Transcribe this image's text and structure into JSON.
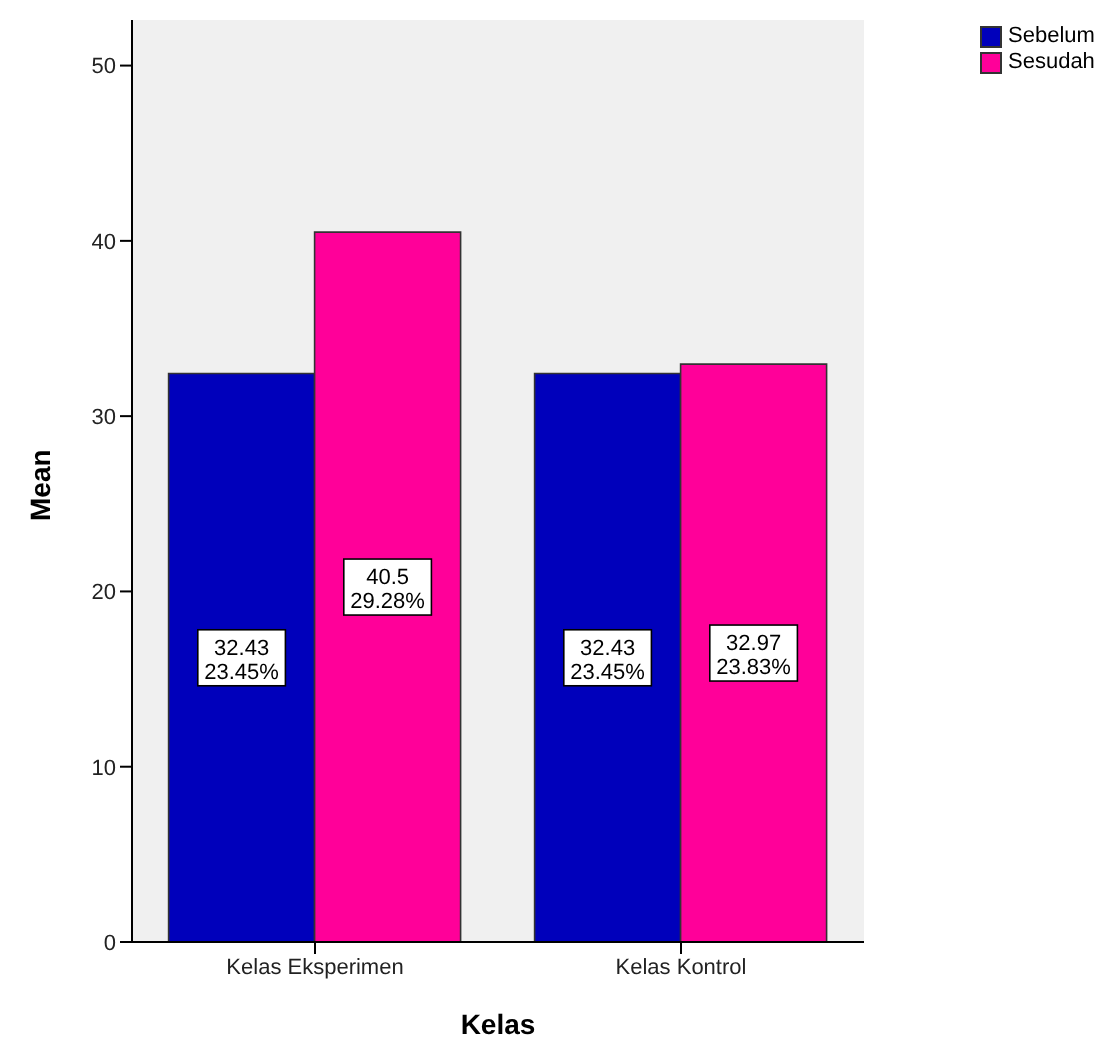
{
  "chart_data": {
    "type": "bar",
    "xlabel": "Kelas",
    "ylabel": "Mean",
    "categories": [
      "Kelas Eksperimen",
      "Kelas Kontrol"
    ],
    "series": [
      {
        "name": "Sebelum",
        "color": "#0000bb",
        "values": [
          32.43,
          32.43
        ],
        "value_labels": [
          "32.43\n23.45%",
          "32.43\n23.45%"
        ]
      },
      {
        "name": "Sesudah",
        "color": "#ff0099",
        "values": [
          40.5,
          32.97
        ],
        "value_labels": [
          "40.5\n29.28%",
          "32.97\n23.83%"
        ]
      }
    ],
    "ylim": [
      0,
      52.6
    ],
    "yticks": [
      0,
      10,
      20,
      30,
      40,
      50
    ],
    "grid": false,
    "legend": "top right"
  }
}
